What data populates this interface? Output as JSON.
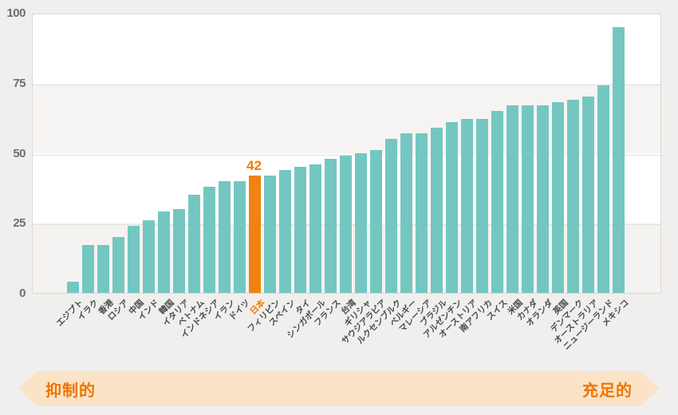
{
  "chart_data": {
    "type": "bar",
    "title": "",
    "xlabel": "",
    "ylabel": "",
    "ylim": [
      0,
      100
    ],
    "y_ticks": [
      0,
      25,
      50,
      75,
      100
    ],
    "grid": "horizontal-bands",
    "legend": "none",
    "bar_color": "#74c7c1",
    "highlight_color": "#ef8312",
    "highlight_label_color": "#ef7d00",
    "categories": [
      "エジプト",
      "イラク",
      "香港",
      "ロシア",
      "中国",
      "インド",
      "韓国",
      "イタリア",
      "ベトナム",
      "インドネシア",
      "イラン",
      "ドイツ",
      "日本",
      "フィリピン",
      "スペイン",
      "タイ",
      "シンガポール",
      "フランス",
      "台湾",
      "ギリシャ",
      "サウジアラビア",
      "ルクセンブルク",
      "ベルギー",
      "マレーシア",
      "ブラジル",
      "アルゼンチン",
      "オーストリア",
      "南アフリカ",
      "スイス",
      "米国",
      "カナダ",
      "オランダ",
      "英国",
      "デンマーク",
      "オーストラリア",
      "ニュージーランド",
      "メキシコ"
    ],
    "values": [
      4,
      17,
      17,
      20,
      24,
      26,
      29,
      30,
      35,
      38,
      40,
      40,
      42,
      42,
      44,
      45,
      46,
      48,
      49,
      50,
      51,
      55,
      57,
      57,
      59,
      61,
      62,
      62,
      65,
      67,
      67,
      67,
      68,
      69,
      70,
      74,
      95
    ],
    "highlight": {
      "category": "日本",
      "value": 42,
      "data_label": "42"
    }
  },
  "footer_banner": {
    "left_label": "抑制的",
    "right_label": "充足的",
    "bg_color": "#fbe3c8",
    "text_color": "#ee7500"
  }
}
